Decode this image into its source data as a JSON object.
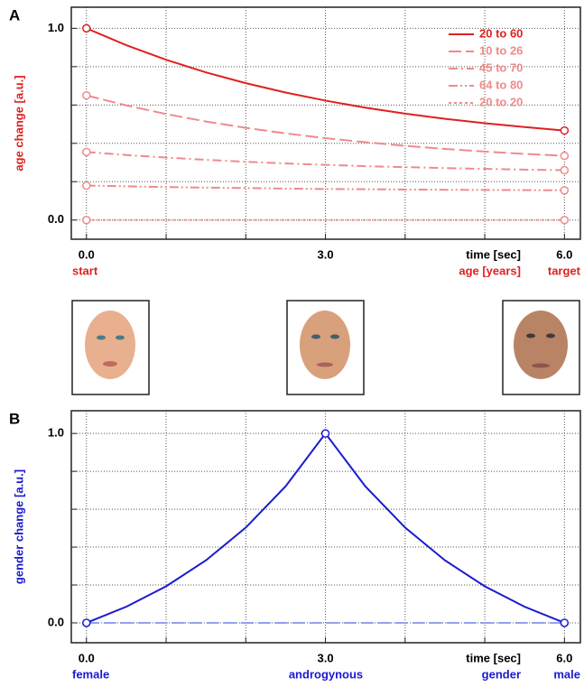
{
  "chart_data": [
    {
      "type": "line",
      "panel": "A",
      "ylabel": "age change [a.u.]",
      "label_color": "#e02020",
      "xlabel": "time [sec]",
      "bottom_labels": [
        "start",
        "age [years]",
        "target"
      ],
      "xlim": [
        -0.19,
        6.2
      ],
      "ylim": [
        -0.1,
        1.11
      ],
      "xticks": [
        {
          "value": 0,
          "label": "0.0"
        },
        {
          "value": 3,
          "label": "3.0"
        },
        {
          "value": 6,
          "label": "6.0"
        }
      ],
      "xminor": [
        1,
        2,
        4,
        5
      ],
      "yticks": [
        {
          "value": 0,
          "label": "0.0"
        },
        {
          "value": 1,
          "label": "1.0"
        }
      ],
      "yminor": [
        0.2,
        0.4,
        0.6,
        0.8
      ],
      "grid": true,
      "legend": "upper right",
      "x": [
        0,
        0.5,
        1,
        1.5,
        2,
        2.5,
        3,
        3.5,
        4,
        4.5,
        5,
        5.5,
        6
      ],
      "series": [
        {
          "name": "20 to 60",
          "color": "#e02020",
          "dash": "solid",
          "markers": [
            0,
            6
          ],
          "values": [
            1,
            0.912,
            0.836,
            0.77,
            0.714,
            0.665,
            0.623,
            0.586,
            0.555,
            0.528,
            0.505,
            0.485,
            0.467
          ]
        },
        {
          "name": "10 to 26",
          "color": "#f08a8a",
          "dash": "dashed",
          "markers": [
            0,
            6
          ],
          "values": [
            0.65,
            0.598,
            0.553,
            0.514,
            0.481,
            0.452,
            0.427,
            0.406,
            0.387,
            0.371,
            0.357,
            0.345,
            0.335
          ]
        },
        {
          "name": "45 to 70",
          "color": "#f08a8a",
          "dash": "dash-dot",
          "markers": [
            0,
            6
          ],
          "values": [
            0.355,
            0.339,
            0.326,
            0.314,
            0.304,
            0.295,
            0.288,
            0.281,
            0.276,
            0.271,
            0.267,
            0.263,
            0.26
          ]
        },
        {
          "name": "64 to 80",
          "color": "#f08a8a",
          "dash": "dash-dot-dot",
          "markers": [
            0,
            6
          ],
          "values": [
            0.18,
            0.176,
            0.172,
            0.169,
            0.167,
            0.164,
            0.162,
            0.161,
            0.159,
            0.158,
            0.157,
            0.156,
            0.155
          ]
        },
        {
          "name": "20 to 20",
          "color": "#f08a8a",
          "dash": "dotted",
          "markers": [
            0,
            6
          ],
          "values": [
            0,
            0,
            0,
            0,
            0,
            0,
            0,
            0,
            0,
            0,
            0,
            0,
            0
          ]
        }
      ]
    },
    {
      "type": "line",
      "panel": "B",
      "ylabel": "gender change [a.u.]",
      "label_color": "#1a1ad0",
      "xlabel": "time [sec]",
      "bottom_labels": [
        "female",
        "androgynous",
        "gender",
        "male"
      ],
      "xlim": [
        -0.19,
        6.2
      ],
      "ylim": [
        -0.105,
        1.12
      ],
      "xticks": [
        {
          "value": 0,
          "label": "0.0"
        },
        {
          "value": 3,
          "label": "3.0"
        },
        {
          "value": 6,
          "label": "6.0"
        }
      ],
      "xminor": [
        1,
        2,
        4,
        5
      ],
      "yticks": [
        {
          "value": 0,
          "label": "0.0"
        },
        {
          "value": 1,
          "label": "1.0"
        }
      ],
      "yminor": [
        0.2,
        0.4,
        0.6,
        0.8
      ],
      "grid": true,
      "x": [
        0,
        0.5,
        1,
        1.5,
        2,
        2.5,
        3,
        3.5,
        4,
        4.5,
        5,
        5.5,
        6
      ],
      "series": [
        {
          "color": "#8fa3f0",
          "dash": "dashed",
          "values": [
            0,
            0,
            0,
            0,
            0,
            0,
            0,
            0,
            0,
            0,
            0,
            0,
            0
          ]
        },
        {
          "color": "#1a1ad0",
          "dash": "solid",
          "markers": [
            0,
            3,
            6
          ],
          "values": [
            0,
            0.085,
            0.193,
            0.33,
            0.503,
            0.721,
            1,
            0.721,
            0.503,
            0.33,
            0.193,
            0.085,
            0
          ]
        }
      ]
    }
  ]
}
